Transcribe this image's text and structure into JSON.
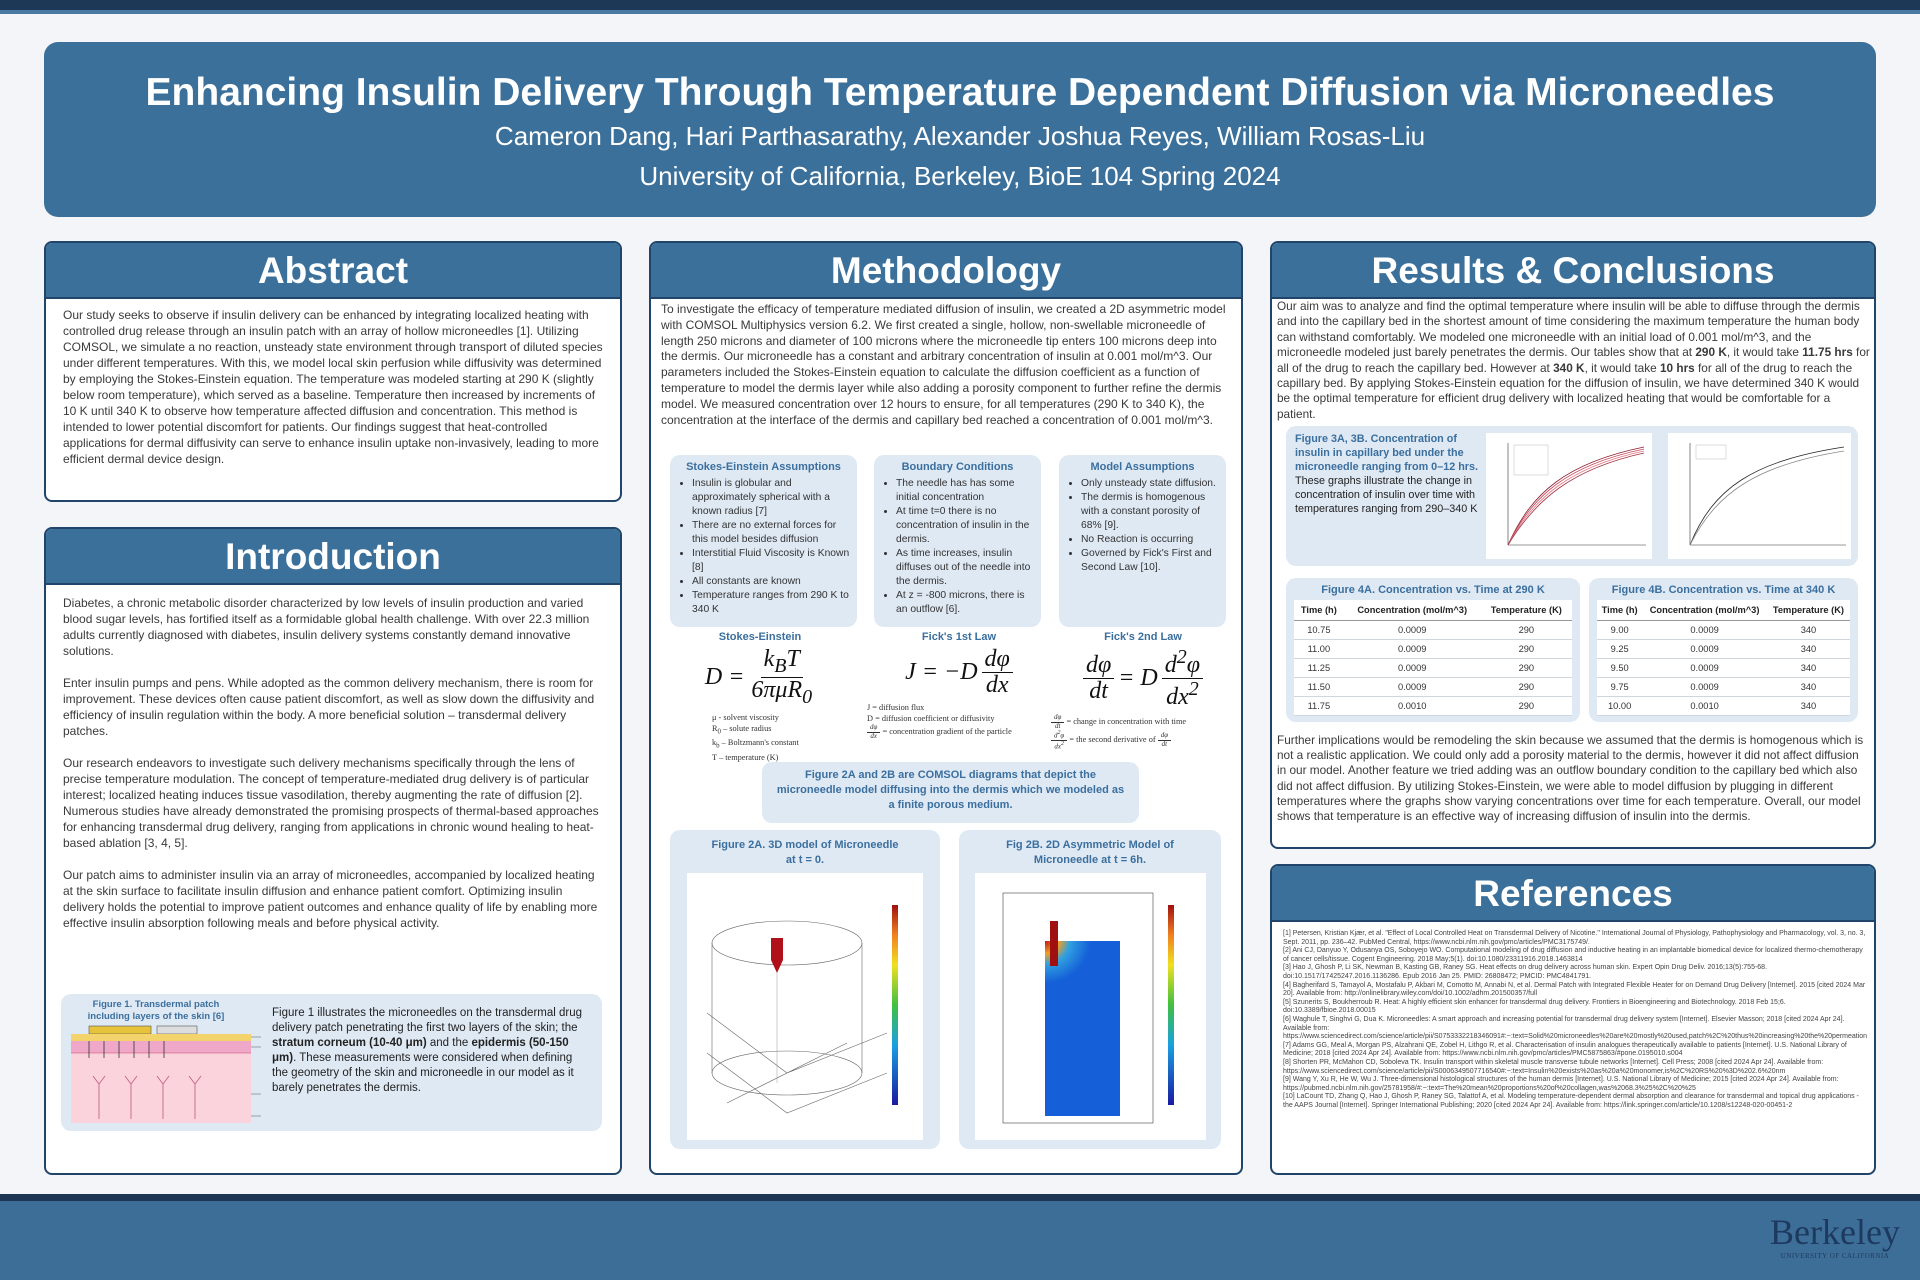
{
  "header": {
    "title": "Enhancing Insulin Delivery Through Temperature Dependent Diffusion via Microneedles",
    "authors": "Cameron Dang, Hari Parthasarathy, Alexander Joshua Reyes, William Rosas-Liu",
    "affiliation": "University of California, Berkeley, BioE 104 Spring 2024"
  },
  "abstract": {
    "heading": "Abstract",
    "text": "Our study seeks to observe if insulin delivery can be enhanced by integrating localized heating with controlled drug release through an insulin patch with an array of hollow microneedles [1]. Utilizing COMSOL, we simulate a no reaction, unsteady state environment through transport of diluted species under different temperatures. With this, we model local skin perfusion while diffusivity was determined by employing the Stokes-Einstein equation. The temperature was modeled starting at 290 K (slightly below room temperature), which served as a baseline. Temperature then increased by increments of 10 K until 340 K to observe how temperature affected diffusion and concentration. This method is intended to lower potential discomfort for patients. Our findings suggest that heat-controlled applications for dermal diffusivity can serve to enhance insulin uptake non-invasively, leading to more efficient dermal device design."
  },
  "introduction": {
    "heading": "Introduction",
    "paragraphs": [
      "Diabetes, a chronic metabolic disorder characterized by low levels of insulin production and varied blood sugar levels, has fortified itself as a formidable global health challenge. With over 22.3 million adults currently diagnosed with diabetes, insulin delivery systems constantly demand innovative solutions.",
      "Enter insulin pumps and pens. While adopted as the common delivery mechanism, there is room for improvement. These devices often cause patient discomfort, as well as slow down the diffusivity and efficiency of insulin regulation within the body. A more beneficial solution – transdermal delivery patches.",
      "Our research endeavors to investigate such delivery mechanisms specifically through the lens of precise temperature modulation. The concept of temperature-mediated drug delivery is of particular interest; localized heating induces tissue vasodilation, thereby augmenting the rate of diffusion [2]. Numerous studies have already demonstrated the promising prospects of thermal-based approaches for enhancing transdermal drug delivery, ranging from applications in chronic wound healing to heat-based ablation [3, 4, 5].",
      "Our patch aims to administer insulin via an array of microneedles, accompanied by localized heating at the skin surface to facilitate insulin diffusion and enhance patient comfort. Optimizing insulin delivery holds the potential to improve patient outcomes and enhance quality of life by enabling more effective insulin absorption following meals and before physical activity."
    ],
    "figure1": {
      "caption": "Figure 1. Transdermal patch including layers of the skin [6]",
      "parts": [
        "Figure 1 illustrates the microneedles on the transdermal drug delivery patch penetrating the first two layers of the skin; the ",
        "stratum corneum (10-40 μm)",
        " and the ",
        "epidermis (50-150 μm)",
        ". These measurements were considered when defining the geometry of the skin and microneedle in our model as it barely penetrates the dermis."
      ]
    }
  },
  "methodology": {
    "heading": "Methodology",
    "text": "To investigate the efficacy of temperature mediated diffusion of insulin, we created a 2D asymmetric model with COMSOL Multiphysics version 6.2. We first created a single, hollow, non-swellable microneedle of length 250 microns and diameter of 100 microns where the microneedle tip enters 100 microns deep into the dermis. Our microneedle has a constant and arbitrary concentration of insulin at 0.001 mol/m^3. Our parameters included the Stokes-Einstein equation to calculate the diffusion coefficient as a function of temperature to model the dermis layer while also adding a porosity component to further refine the dermis model. We measured concentration over 12 hours to ensure, for all temperatures (290 K to 340 K), the concentration at the interface of the dermis and capillary bed reached a concentration of 0.001 mol/m^3.",
    "boxes": [
      {
        "title": "Stokes-Einstein Assumptions",
        "items": [
          "Insulin is globular and approximately spherical with a known radius [7]",
          "There are no external forces for this model besides diffusion",
          "Interstitial Fluid Viscosity is Known [8]",
          "All constants are known",
          "Temperature ranges from 290 K to 340 K"
        ]
      },
      {
        "title": "Boundary Conditions",
        "items": [
          "The needle has has some initial concentration",
          "At time t=0 there is no concentration of insulin in the dermis.",
          "As time increases, insulin diffuses out of the needle into the dermis.",
          "At z = -800 microns, there is an outflow [6]."
        ]
      },
      {
        "title": "Model Assumptions",
        "items": [
          "Only unsteady state diffusion.",
          "The dermis is homogenous with a constant porosity of 68% [9].",
          "No Reaction is occurring",
          "Governed by Fick's First and Second Law [10]."
        ]
      }
    ],
    "equations": [
      {
        "label": "Stokes-Einstein",
        "formula": [
          "D = ",
          {
            "num": [
              "k",
              {
                "sub": "B"
              },
              "T"
            ],
            "den": [
              "6πμR",
              {
                "sub": "0"
              }
            ]
          }
        ],
        "legend": [
          [
            "μ - solvent viscosity"
          ],
          [
            "R",
            {
              "sub": "0"
            },
            " – solute radius"
          ],
          [
            "k",
            {
              "sub": "b"
            },
            " – Boltzmann's constant"
          ],
          [
            "T – temperature (K)"
          ]
        ]
      },
      {
        "label": "Fick's 1st Law",
        "formula": [
          "J = −D ",
          {
            "num": "dφ",
            "den": "dx"
          }
        ],
        "legend": [
          [
            "J = diffusion flux"
          ],
          [
            "D = diffusion coefficient or diffusivity"
          ],
          [
            {
              "num": "dφ",
              "den": "dx"
            },
            " = concentration gradient of the particle"
          ]
        ]
      },
      {
        "label": "Fick's 2nd Law",
        "formula": [
          {
            "num": "dφ",
            "den": "dt"
          },
          " = D ",
          {
            "num": [
              "d",
              {
                "sup": "2"
              },
              "φ"
            ],
            "den": [
              "dx",
              {
                "sup": "2"
              }
            ]
          }
        ],
        "legend": [
          [
            {
              "num": "dφ",
              "den": "dt"
            },
            " = change in concentration with time"
          ],
          [
            {
              "num": [
                "d",
                {
                  "sup": "2"
                },
                "φ"
              ],
              "den": [
                "dx",
                {
                  "sup": "2"
                }
              ]
            },
            " = the second derivative of ",
            {
              "num": "dφ",
              "den": "dt"
            }
          ]
        ]
      }
    ],
    "figure2_caption": "Figure 2A and 2B are COMSOL diagrams that depict the microneedle model diffusing into the dermis which we modeled as a finite porous medium.",
    "figure2a_title": "Figure 2A. 3D model of Microneedle at t = 0.",
    "figure2b_title": "Fig 2B. 2D Asymmetric Model of Microneedle at t = 6h."
  },
  "results": {
    "heading": "Results & Conclusions",
    "parts": [
      "Our aim was to analyze and find the optimal temperature where insulin will be able to diffuse through the dermis and into the capillary bed in the shortest amount of time considering the maximum temperature the human body can withstand comfortably. We modeled one microneedle with an initial load of 0.001 mol/m^3, and the microneedle modeled just barely penetrates the dermis. Our tables show that at ",
      "290 K",
      ", it would take ",
      "11.75 hrs",
      " for all of the drug to reach the capillary bed. However at ",
      "340 K",
      ", it would take ",
      "10 hrs",
      " for all of the drug to reach the capillary bed. By applying Stokes-Einstein equation for the diffusion of insulin, we have determined 340 K would be the optimal temperature for efficient drug delivery with localized heating that would be comfortable for a patient."
    ],
    "figure3_caption": "Figure 3A, 3B. Concentration of insulin in capillary bed under the microneedle ranging from 0–12 hrs.",
    "figure3_text": "These graphs illustrate the change in concentration of insulin over time with temperatures ranging from 290–340 K",
    "tables": [
      {
        "title": "Figure 4A.  Concentration vs. Time at 290 K",
        "header": [
          "Time (h)",
          "Concentration (mol/m^3)",
          "Temperature (K)"
        ],
        "rows": [
          [
            "10.75",
            "0.0009",
            "290"
          ],
          [
            "11.00",
            "0.0009",
            "290"
          ],
          [
            "11.25",
            "0.0009",
            "290"
          ],
          [
            "11.50",
            "0.0009",
            "290"
          ],
          [
            "11.75",
            "0.0010",
            "290"
          ]
        ]
      },
      {
        "title": "Figure 4B.  Concentration vs. Time at 340 K",
        "header": [
          "Time (h)",
          "Concentration (mol/m^3)",
          "Temperature (K)"
        ],
        "rows": [
          [
            "9.00",
            "0.0009",
            "340"
          ],
          [
            "9.25",
            "0.0009",
            "340"
          ],
          [
            "9.50",
            "0.0009",
            "340"
          ],
          [
            "9.75",
            "0.0009",
            "340"
          ],
          [
            "10.00",
            "0.0010",
            "340"
          ]
        ]
      }
    ],
    "further": "Further implications would be remodeling the skin because we assumed that the dermis is homogenous which is not a realistic application. We could only add a porosity material to the dermis, however it did not affect diffusion in our model. Another feature we tried adding was an outflow boundary condition to the capillary bed which also did not affect diffusion. By utilizing Stokes-Einstein, we were able to model diffusion by plugging in different temperatures where the graphs show varying concentrations over time for each temperature. Overall, our model shows that temperature is an effective way of increasing diffusion of insulin into the dermis."
  },
  "references": {
    "heading": "References",
    "items": [
      "[1] Petersen, Kristian Kjær, et al. \"Effect of Local Controlled Heat on Transdermal Delivery of Nicotine.\" International Journal of Physiology, Pathophysiology and Pharmacology, vol. 3, no. 3, Sept. 2011, pp. 236–42. PubMed Central, https://www.ncbi.nlm.nih.gov/pmc/articles/PMC3175749/.",
      "[2] Ani CJ, Danyuo Y, Odusanya OS, Soboyejo WO. Computational modeling of drug diffusion and inductive heating in an implantable biomedical device for localized thermo-chemotherapy of cancer cells/tissue. Cogent Engineering. 2018 May;5(1). doi:10.1080/23311916.2018.1463814",
      "[3] Hao J, Ghosh P, Li SK, Newman B, Kasting GB, Raney SG. Heat effects on drug delivery across human skin. Expert Opin Drug Deliv. 2016;13(5):755-68. doi:10.1517/17425247.2016.1136286. Epub 2016 Jan 25. PMID: 26808472; PMCID: PMC4841791.",
      "[4] Bagherifard S, Tamayol A, Mostafalu P, Akbari M, Comotto M, Annabi N, et al. Dermal Patch with Integrated Flexible Heater for on Demand Drug Delivery [Internet]. 2015 [cited 2024 Mar 20]. Available from: http://onlinelibrary.wiley.com/doi/10.1002/adhm.201500357/full",
      "[5] Szunerits S, Boukherroub R. Heat: A highly efficient skin enhancer for transdermal drug delivery. Frontiers in Bioengineering and Biotechnology. 2018 Feb 15;6. doi:10.3389/fbioe.2018.00015",
      "[6] Waghule T, Singhvi G, Dua K. Microneedles: A smart approach and increasing potential for transdermal drug delivery system [Internet]. Elsevier Masson; 2018 [cited 2024 Apr 24]. Available from: https://www.sciencedirect.com/science/article/pii/S0753332218346091#:~:text=Solid%20microneedles%20are%20mostly%20used,patch%2C%20thus%20increasing%20the%20permeation",
      "[7] Adams GG, Meal A, Morgan PS, Alzahrani QE, Zobel H, Lithgo R, et al. Characterisation of insulin analogues therapeutically available to patients [Internet]. U.S. National Library of Medicine; 2018 [cited 2024 Apr 24]. Available from: https://www.ncbi.nlm.nih.gov/pmc/articles/PMC5875863/#pone.0195010.s004",
      "[8] Shorten PR, McMahon CD, Soboleva TK. Insulin transport within skeletal muscle transverse tubule networks [Internet]. Cell Press; 2008 [cited 2024 Apr 24]. Available from: https://www.sciencedirect.com/science/article/pii/S0006349507716540#:~:text=Insulin%20exists%20as%20a%20monomer,is%2C%20RS%20%3D%202.6%20nm",
      "[9] Wang Y, Xu R, He W, Wu J. Three-dimensional histological structures of the human dermis [Internet]. U.S. National Library of Medicine; 2015 [cited 2024 Apr 24]. Available from: https://pubmed.ncbi.nlm.nih.gov/25781958/#:~:text=The%20mean%20proportions%20of%20collagen,was%2068.3%25%2C%20%25",
      "[10] LaCount TD, Zhang Q, Hao J, Ghosh P, Raney SG, Talattof A, et al. Modeling temperature-dependent dermal absorption and clearance for transdermal and topical drug applications - the AAPS Journal [Internet]. Springer International Publishing; 2020 [cited 2024 Apr 24]. Available from: https://link.springer.com/article/10.1208/s12248-020-00451-2"
    ]
  },
  "footer": {
    "logo": "Berkeley",
    "logo_sub": "UNIVERSITY OF CALIFORNIA"
  }
}
